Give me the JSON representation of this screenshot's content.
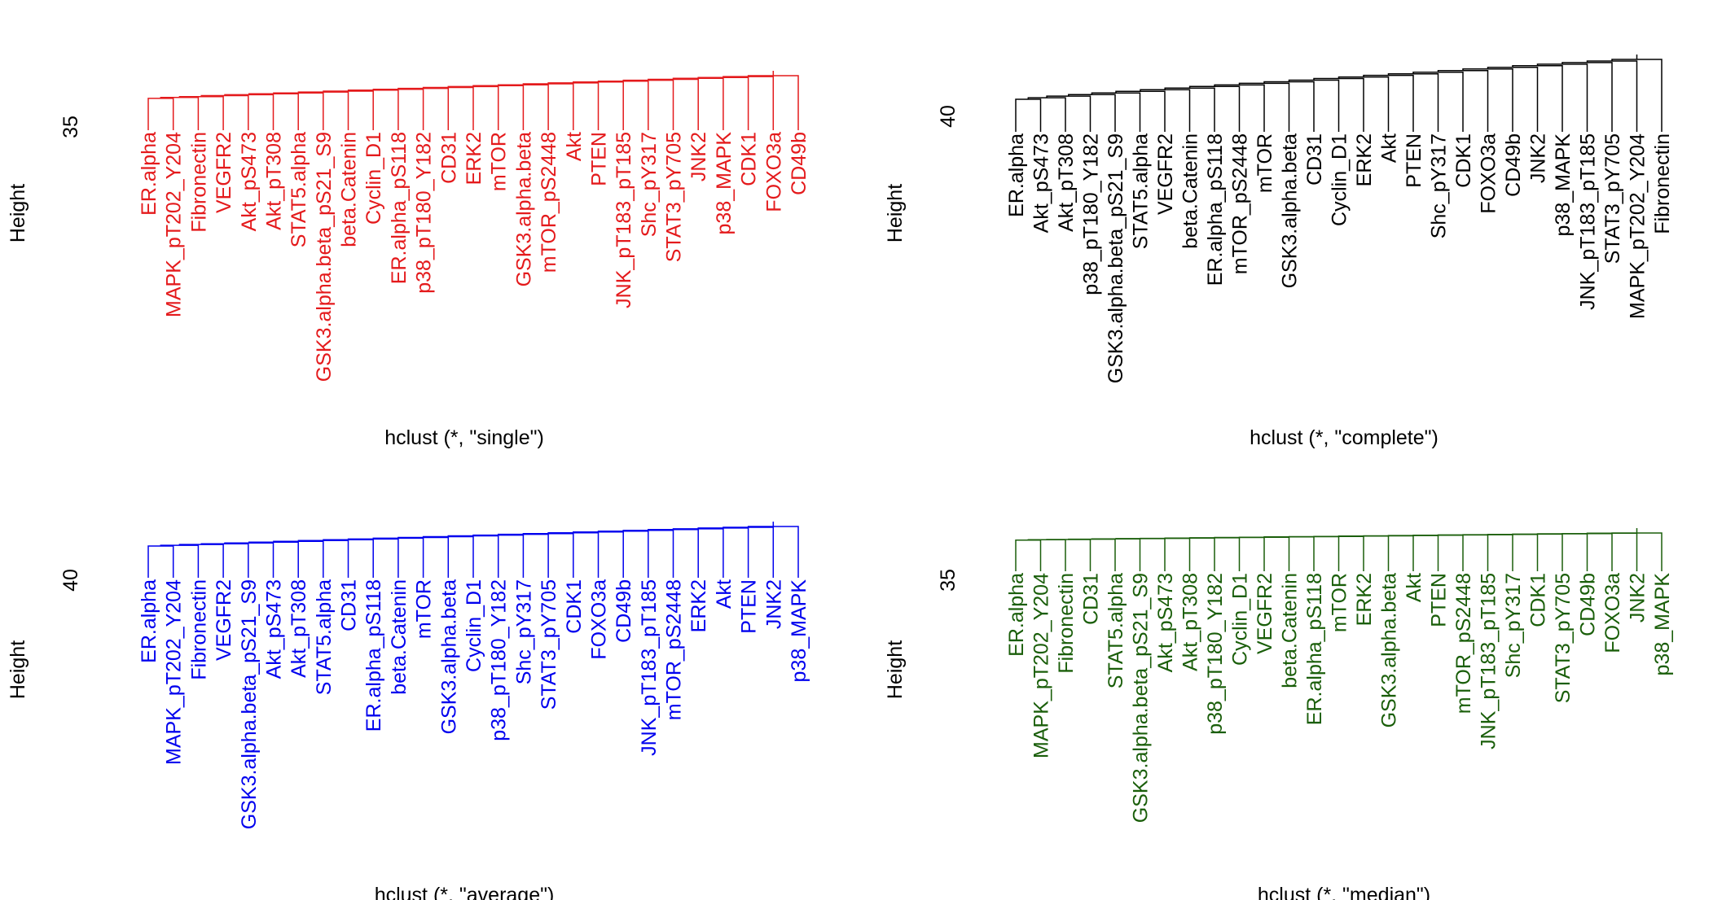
{
  "chart_data": [
    {
      "type": "dendrogram",
      "color": "#e41a1c",
      "title": "",
      "xlabel": "hclust (*, \"single\")",
      "ylabel": "Height",
      "y_tick": "35",
      "leaves": [
        "ER.alpha",
        "MAPK_pT202_Y204",
        "Fibronectin",
        "VEGFR2",
        "Akt_pS473",
        "Akt_pT308",
        "STAT5.alpha",
        "GSK3.alpha.beta_pS21_S9",
        "beta.Catenin",
        "Cyclin_D1",
        "ER.alpha_pS118",
        "p38_pT180_Y182",
        "CD31",
        "ERK2",
        "mTOR",
        "GSK3.alpha.beta",
        "mTOR_pS2448",
        "Akt",
        "PTEN",
        "JNK_pT183_pT185",
        "Shc_pY317",
        "STAT3_pY705",
        "JNK2",
        "p38_MAPK",
        "CDK1",
        "FOXO3a",
        "CD49b"
      ]
    },
    {
      "type": "dendrogram",
      "color": "#000000",
      "title": "",
      "xlabel": "hclust (*, \"complete\")",
      "ylabel": "Height",
      "y_tick": "40",
      "leaves": [
        "ER.alpha",
        "Akt_pS473",
        "Akt_pT308",
        "p38_pT180_Y182",
        "GSK3.alpha.beta_pS21_S9",
        "STAT5.alpha",
        "VEGFR2",
        "beta.Catenin",
        "ER.alpha_pS118",
        "mTOR_pS2448",
        "mTOR",
        "GSK3.alpha.beta",
        "CD31",
        "Cyclin_D1",
        "ERK2",
        "Akt",
        "PTEN",
        "Shc_pY317",
        "CDK1",
        "FOXO3a",
        "CD49b",
        "JNK2",
        "p38_MAPK",
        "JNK_pT183_pT185",
        "STAT3_pY705",
        "MAPK_pT202_Y204",
        "Fibronectin"
      ]
    },
    {
      "type": "dendrogram",
      "color": "#0000ee",
      "title": "",
      "xlabel": "hclust (*, \"average\")",
      "ylabel": "Height",
      "y_tick": "40",
      "leaves": [
        "ER.alpha",
        "MAPK_pT202_Y204",
        "Fibronectin",
        "VEGFR2",
        "GSK3.alpha.beta_pS21_S9",
        "Akt_pS473",
        "Akt_pT308",
        "STAT5.alpha",
        "CD31",
        "ER.alpha_pS118",
        "beta.Catenin",
        "mTOR",
        "GSK3.alpha.beta",
        "Cyclin_D1",
        "p38_pT180_Y182",
        "Shc_pY317",
        "STAT3_pY705",
        "CDK1",
        "FOXO3a",
        "CD49b",
        "JNK_pT183_pT185",
        "mTOR_pS2448",
        "ERK2",
        "Akt",
        "PTEN",
        "JNK2",
        "p38_MAPK"
      ]
    },
    {
      "type": "dendrogram",
      "color": "#1a5e0a",
      "title": "",
      "xlabel": "hclust (*, \"median\")",
      "ylabel": "Height",
      "y_tick": "35",
      "leaves": [
        "ER.alpha",
        "MAPK_pT202_Y204",
        "Fibronectin",
        "CD31",
        "STAT5.alpha",
        "GSK3.alpha.beta_pS21_S9",
        "Akt_pS473",
        "Akt_pT308",
        "p38_pT180_Y182",
        "Cyclin_D1",
        "VEGFR2",
        "beta.Catenin",
        "ER.alpha_pS118",
        "mTOR",
        "ERK2",
        "GSK3.alpha.beta",
        "Akt",
        "PTEN",
        "mTOR_pS2448",
        "JNK_pT183_pT185",
        "Shc_pY317",
        "CDK1",
        "STAT3_pY705",
        "CD49b",
        "FOXO3a",
        "JNK2",
        "p38_MAPK"
      ]
    }
  ]
}
